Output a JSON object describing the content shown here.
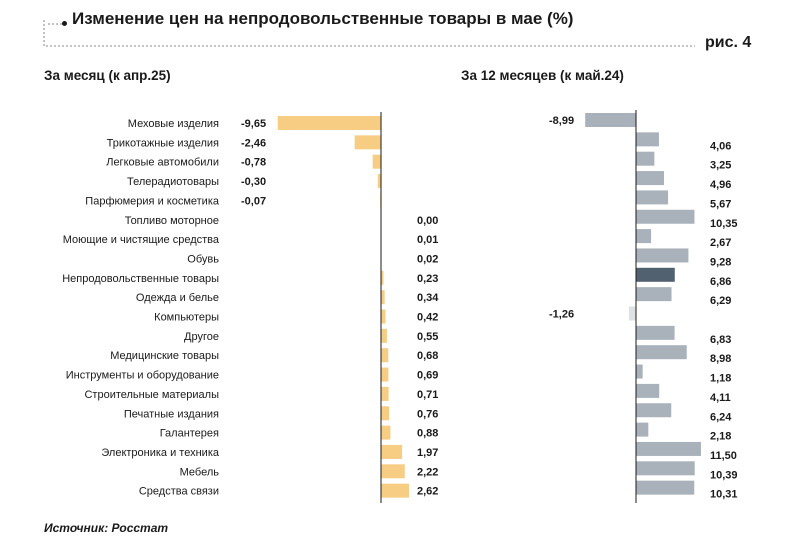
{
  "header": {
    "title": "Изменение цен на непродовольственные товары в мае (%)",
    "figure_label": "рис. 4"
  },
  "footer": {
    "source": "Источник: Росстат"
  },
  "chart_data": [
    {
      "type": "bar",
      "orientation": "horizontal",
      "title": "За месяц (к апр.25)",
      "categories": [
        "Меховые изделия",
        "Трикотажные изделия",
        "Легковые автомобили",
        "Телерадиотовары",
        "Парфюмерия и косметика",
        "Топливо моторное",
        "Моющие и чистящие средства",
        "Обувь",
        "Непродовольственные товары",
        "Одежда и белье",
        "Компьютеры",
        "Другое",
        "Медицинские товары",
        "Инструменты и оборудование",
        "Строительные материалы",
        "Печатные издания",
        "Галантерея",
        "Электроника и техника",
        "Мебель",
        "Средства связи"
      ],
      "value_labels": [
        "-9,65",
        "-2,46",
        "-0,78",
        "-0,30",
        "-0,07",
        "0,00",
        "0,01",
        "0,02",
        "0,23",
        "0,34",
        "0,42",
        "0,55",
        "0,68",
        "0,69",
        "0,71",
        "0,76",
        "0,88",
        "1,97",
        "2,22",
        "2,62"
      ],
      "values": [
        -9.65,
        -2.46,
        -0.78,
        -0.3,
        -0.07,
        0.0,
        0.01,
        0.02,
        0.23,
        0.34,
        0.42,
        0.55,
        0.68,
        0.69,
        0.71,
        0.76,
        0.88,
        1.97,
        2.22,
        2.62
      ],
      "colors": {
        "bar": "#f7cc83",
        "axis": "#1a1a1a"
      }
    },
    {
      "type": "bar",
      "orientation": "horizontal",
      "title": "За 12 месяцев (к май.24)",
      "value_labels": [
        "-8,99",
        "4,06",
        "3,25",
        "4,96",
        "5,67",
        "10,35",
        "2,67",
        "9,28",
        "6,86",
        "6,29",
        "-1,26",
        "6,83",
        "8,98",
        "1,18",
        "4,11",
        "6,24",
        "2,18",
        "11,50",
        "10,39",
        "10,31"
      ],
      "values": [
        -8.99,
        4.06,
        3.25,
        4.96,
        5.67,
        10.35,
        2.67,
        9.28,
        6.86,
        6.29,
        -1.26,
        6.83,
        8.98,
        1.18,
        4.11,
        6.24,
        2.18,
        11.5,
        10.39,
        10.31
      ],
      "highlight_index": 8,
      "colors": {
        "bar": "#a9b2bb",
        "highlight": "#52616f",
        "negative_small": "#dfe2e5",
        "axis": "#1a1a1a"
      }
    }
  ]
}
